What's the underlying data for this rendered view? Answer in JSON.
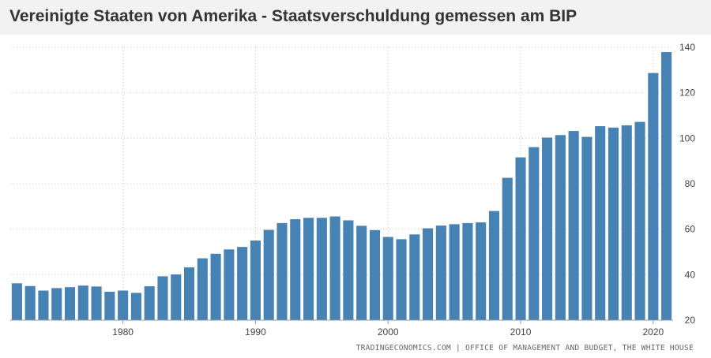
{
  "chart_data": {
    "type": "bar",
    "title": "Vereinigte Staaten von Amerika - Staatsverschuldung gemessen am BIP",
    "source": "TRADINGECONOMICS.COM  |  OFFICE OF MANAGEMENT AND BUDGET, THE WHITE HOUSE",
    "x": [
      1972,
      1973,
      1974,
      1975,
      1976,
      1977,
      1978,
      1979,
      1980,
      1981,
      1982,
      1983,
      1984,
      1985,
      1986,
      1987,
      1988,
      1989,
      1990,
      1991,
      1992,
      1993,
      1994,
      1995,
      1996,
      1997,
      1998,
      1999,
      2000,
      2001,
      2002,
      2003,
      2004,
      2005,
      2006,
      2007,
      2008,
      2009,
      2010,
      2011,
      2012,
      2013,
      2014,
      2015,
      2016,
      2017,
      2018,
      2019,
      2020,
      2021
    ],
    "values": [
      36.2,
      35.0,
      33.0,
      34.1,
      34.5,
      35.2,
      34.8,
      32.5,
      33.0,
      32.0,
      34.9,
      39.3,
      40.1,
      43.2,
      47.2,
      49.2,
      51.1,
      52.2,
      55.0,
      59.7,
      62.7,
      64.4,
      65.0,
      65.0,
      65.6,
      63.9,
      61.5,
      59.6,
      56.6,
      55.6,
      57.7,
      60.4,
      61.6,
      62.2,
      62.7,
      63.0,
      68.0,
      82.6,
      91.6,
      96.1,
      100.3,
      101.4,
      103.2,
      100.6,
      105.3,
      104.7,
      105.7,
      107.2,
      128.7,
      137.9
    ],
    "x_tick_labels": [
      "1980",
      "1990",
      "2000",
      "2010",
      "2020"
    ],
    "y_tick_labels": [
      "20",
      "40",
      "60",
      "80",
      "100",
      "120",
      "140"
    ],
    "ylim": [
      20,
      140
    ],
    "xlabel": "",
    "ylabel": "",
    "grid": "dotted",
    "y_axis_side": "right",
    "bar_color": "#4682b4",
    "grid_color": "#c8c8c8"
  }
}
